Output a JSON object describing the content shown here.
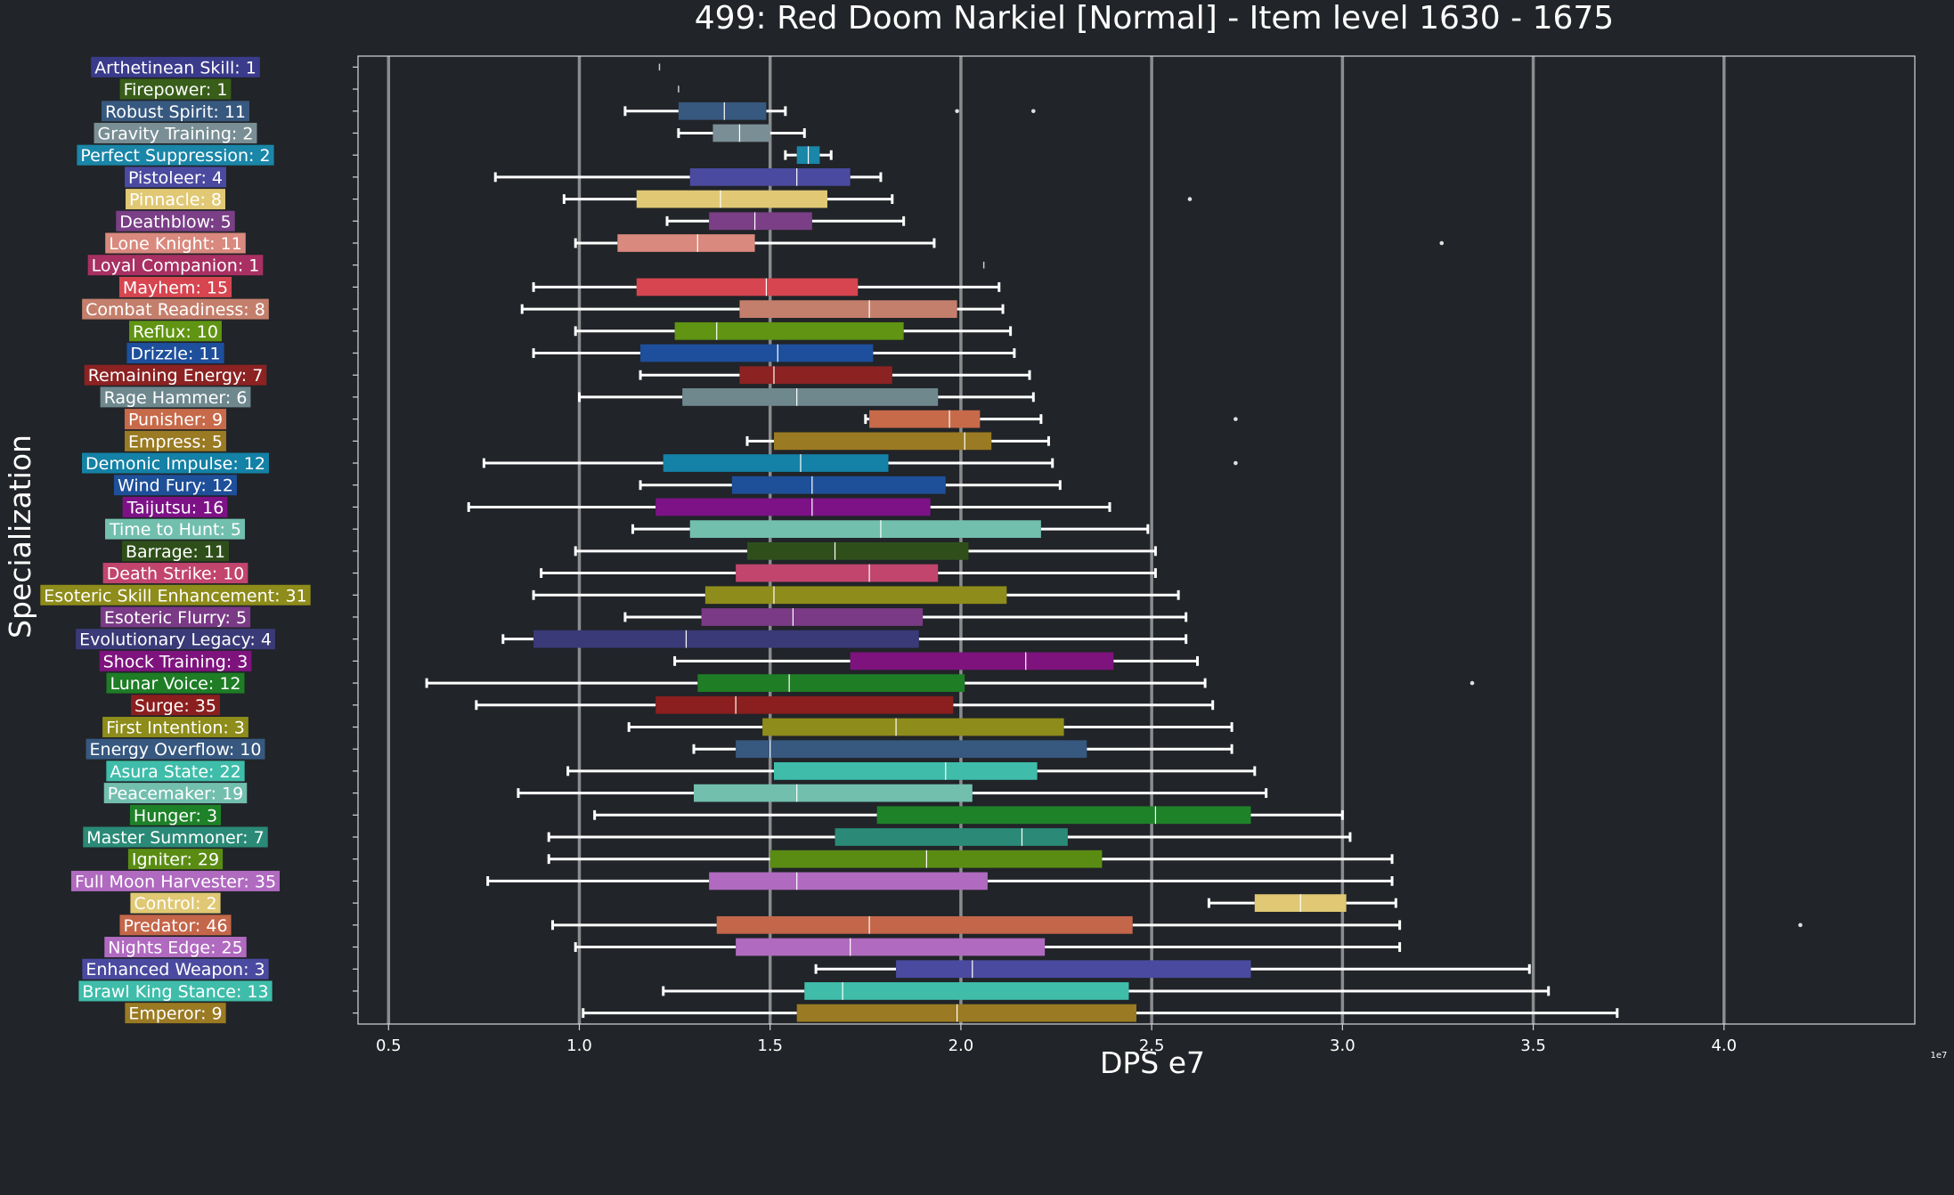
{
  "chart_data": {
    "type": "box",
    "title": "499: Red Doom Narkiel [Normal] - Item level 1630 - 1675",
    "xlabel": "DPS e7",
    "ylabel": "Specialization",
    "x_offset_label": "1e7",
    "xlim": [
      0.42,
      4.5
    ],
    "xticks": [
      0.5,
      1.0,
      1.5,
      2.0,
      2.5,
      3.0,
      3.5,
      4.0
    ],
    "xtick_labels": [
      "0.5",
      "1.0",
      "1.5",
      "2.0",
      "2.5",
      "3.0",
      "3.5",
      "4.0"
    ],
    "grid": "vertical",
    "series": [
      {
        "label": "Arthetinean Skill: 1",
        "color": "#3b3b8c",
        "whislo": 1.21,
        "q1": 1.21,
        "median": 1.21,
        "q3": 1.21,
        "whishi": 1.21,
        "fliers": []
      },
      {
        "label": "Firepower: 1",
        "color": "#385e1a",
        "whislo": 1.26,
        "q1": 1.26,
        "median": 1.26,
        "q3": 1.26,
        "whishi": 1.26,
        "fliers": []
      },
      {
        "label": "Robust Spirit: 11",
        "color": "#37587f",
        "whislo": 1.12,
        "q1": 1.26,
        "median": 1.38,
        "q3": 1.49,
        "whishi": 1.54,
        "fliers": [
          1.99,
          2.19
        ]
      },
      {
        "label": "Gravity Training: 2",
        "color": "#7a8f95",
        "whislo": 1.26,
        "q1": 1.35,
        "median": 1.42,
        "q3": 1.5,
        "whishi": 1.59,
        "fliers": []
      },
      {
        "label": "Perfect Suppression: 2",
        "color": "#1a86a8",
        "whislo": 1.54,
        "q1": 1.57,
        "median": 1.6,
        "q3": 1.63,
        "whishi": 1.66,
        "fliers": []
      },
      {
        "label": "Pistoleer: 4",
        "color": "#4a4aa0",
        "whislo": 0.78,
        "q1": 1.29,
        "median": 1.57,
        "q3": 1.71,
        "whishi": 1.79,
        "fliers": []
      },
      {
        "label": "Pinnacle: 8",
        "color": "#e0c874",
        "whislo": 0.96,
        "q1": 1.15,
        "median": 1.37,
        "q3": 1.65,
        "whishi": 1.82,
        "fliers": [
          2.6
        ]
      },
      {
        "label": "Deathblow: 5",
        "color": "#7a3f86",
        "whislo": 1.23,
        "q1": 1.34,
        "median": 1.46,
        "q3": 1.61,
        "whishi": 1.85,
        "fliers": []
      },
      {
        "label": "Lone Knight: 11",
        "color": "#d9897e",
        "whislo": 0.99,
        "q1": 1.1,
        "median": 1.31,
        "q3": 1.46,
        "whishi": 1.93,
        "fliers": [
          3.26
        ]
      },
      {
        "label": "Loyal Companion: 1",
        "color": "#a83062",
        "whislo": 2.06,
        "q1": 2.06,
        "median": 2.06,
        "q3": 2.06,
        "whishi": 2.06,
        "fliers": []
      },
      {
        "label": "Mayhem: 15",
        "color": "#d64550",
        "whislo": 0.88,
        "q1": 1.15,
        "median": 1.49,
        "q3": 1.73,
        "whishi": 2.1,
        "fliers": []
      },
      {
        "label": "Combat Readiness: 8",
        "color": "#c47f6c",
        "whislo": 0.85,
        "q1": 1.42,
        "median": 1.76,
        "q3": 1.99,
        "whishi": 2.11,
        "fliers": []
      },
      {
        "label": "Reflux: 10",
        "color": "#609412",
        "whislo": 0.99,
        "q1": 1.25,
        "median": 1.36,
        "q3": 1.85,
        "whishi": 2.13,
        "fliers": []
      },
      {
        "label": "Drizzle: 11",
        "color": "#1d4f9c",
        "whislo": 0.88,
        "q1": 1.16,
        "median": 1.52,
        "q3": 1.77,
        "whishi": 2.14,
        "fliers": []
      },
      {
        "label": "Remaining Energy: 7",
        "color": "#8c2222",
        "whislo": 1.16,
        "q1": 1.42,
        "median": 1.51,
        "q3": 1.82,
        "whishi": 2.18,
        "fliers": []
      },
      {
        "label": "Rage Hammer: 6",
        "color": "#6e888e",
        "whislo": 1.0,
        "q1": 1.27,
        "median": 1.57,
        "q3": 1.94,
        "whishi": 2.19,
        "fliers": []
      },
      {
        "label": "Punisher: 9",
        "color": "#c76a4a",
        "whislo": 1.75,
        "q1": 1.76,
        "median": 1.97,
        "q3": 2.05,
        "whishi": 2.21,
        "fliers": [
          2.72
        ]
      },
      {
        "label": "Empress: 5",
        "color": "#9a7a22",
        "whislo": 1.44,
        "q1": 1.51,
        "median": 2.01,
        "q3": 2.08,
        "whishi": 2.23,
        "fliers": []
      },
      {
        "label": "Demonic Impulse: 12",
        "color": "#1481a6",
        "whislo": 0.75,
        "q1": 1.22,
        "median": 1.58,
        "q3": 1.81,
        "whishi": 2.24,
        "fliers": [
          2.72
        ]
      },
      {
        "label": "Wind Fury: 12",
        "color": "#1e4f99",
        "whislo": 1.16,
        "q1": 1.4,
        "median": 1.61,
        "q3": 1.96,
        "whishi": 2.26,
        "fliers": []
      },
      {
        "label": "Taijutsu: 16",
        "color": "#7d1287",
        "whislo": 0.71,
        "q1": 1.2,
        "median": 1.61,
        "q3": 1.92,
        "whishi": 2.39,
        "fliers": []
      },
      {
        "label": "Time to Hunt: 5",
        "color": "#72bfae",
        "whislo": 1.14,
        "q1": 1.29,
        "median": 1.79,
        "q3": 2.21,
        "whishi": 2.49,
        "fliers": []
      },
      {
        "label": "Barrage: 11",
        "color": "#2f4f1a",
        "whislo": 0.99,
        "q1": 1.44,
        "median": 1.67,
        "q3": 2.02,
        "whishi": 2.51,
        "fliers": []
      },
      {
        "label": "Death Strike: 10",
        "color": "#c2456e",
        "whislo": 0.9,
        "q1": 1.41,
        "median": 1.76,
        "q3": 1.94,
        "whishi": 2.51,
        "fliers": []
      },
      {
        "label": "Esoteric Skill Enhancement: 31",
        "color": "#8e8c1a",
        "whislo": 0.88,
        "q1": 1.33,
        "median": 1.51,
        "q3": 2.12,
        "whishi": 2.57,
        "fliers": []
      },
      {
        "label": "Esoteric Flurry: 5",
        "color": "#7a3a86",
        "whislo": 1.12,
        "q1": 1.32,
        "median": 1.56,
        "q3": 1.9,
        "whishi": 2.59,
        "fliers": []
      },
      {
        "label": "Evolutionary Legacy: 4",
        "color": "#3a3a78",
        "whislo": 0.8,
        "q1": 0.88,
        "median": 1.28,
        "q3": 1.89,
        "whishi": 2.59,
        "fliers": []
      },
      {
        "label": "Shock Training: 3",
        "color": "#7e137e",
        "whislo": 1.25,
        "q1": 1.71,
        "median": 2.17,
        "q3": 2.4,
        "whishi": 2.62,
        "fliers": []
      },
      {
        "label": "Lunar Voice: 12",
        "color": "#1e7d25",
        "whislo": 0.6,
        "q1": 1.31,
        "median": 1.55,
        "q3": 2.01,
        "whishi": 2.64,
        "fliers": [
          3.34
        ]
      },
      {
        "label": "Surge: 35",
        "color": "#8b1e1e",
        "whislo": 0.73,
        "q1": 1.2,
        "median": 1.41,
        "q3": 1.98,
        "whishi": 2.66,
        "fliers": []
      },
      {
        "label": "First Intention: 3",
        "color": "#8e8c1a",
        "whislo": 1.13,
        "q1": 1.48,
        "median": 1.83,
        "q3": 2.27,
        "whishi": 2.71,
        "fliers": []
      },
      {
        "label": "Energy Overflow: 10",
        "color": "#37587f",
        "whislo": 1.3,
        "q1": 1.41,
        "median": 1.5,
        "q3": 2.33,
        "whishi": 2.71,
        "fliers": []
      },
      {
        "label": "Asura State: 22",
        "color": "#3fbdaa",
        "whislo": 0.97,
        "q1": 1.51,
        "median": 1.96,
        "q3": 2.2,
        "whishi": 2.77,
        "fliers": []
      },
      {
        "label": "Peacemaker: 19",
        "color": "#72bfae",
        "whislo": 0.84,
        "q1": 1.3,
        "median": 1.57,
        "q3": 2.03,
        "whishi": 2.8,
        "fliers": []
      },
      {
        "label": "Hunger: 3",
        "color": "#1e8228",
        "whislo": 1.04,
        "q1": 1.78,
        "median": 2.51,
        "q3": 2.76,
        "whishi": 3.0,
        "fliers": []
      },
      {
        "label": "Master Summoner: 7",
        "color": "#2a8a77",
        "whislo": 0.92,
        "q1": 1.67,
        "median": 2.16,
        "q3": 2.28,
        "whishi": 3.02,
        "fliers": []
      },
      {
        "label": "Igniter: 29",
        "color": "#5a8c14",
        "whislo": 0.92,
        "q1": 1.5,
        "median": 1.91,
        "q3": 2.37,
        "whishi": 3.13,
        "fliers": []
      },
      {
        "label": "Full Moon Harvester: 35",
        "color": "#b06abf",
        "whislo": 0.76,
        "q1": 1.34,
        "median": 1.57,
        "q3": 2.07,
        "whishi": 3.13,
        "fliers": []
      },
      {
        "label": "Control: 2",
        "color": "#e0c874",
        "whislo": 2.65,
        "q1": 2.77,
        "median": 2.89,
        "q3": 3.01,
        "whishi": 3.14,
        "fliers": []
      },
      {
        "label": "Predator: 46",
        "color": "#c4664a",
        "whislo": 0.93,
        "q1": 1.36,
        "median": 1.76,
        "q3": 2.45,
        "whishi": 3.15,
        "fliers": [
          4.2
        ]
      },
      {
        "label": "Nights Edge: 25",
        "color": "#b06abf",
        "whislo": 0.99,
        "q1": 1.41,
        "median": 1.71,
        "q3": 2.22,
        "whishi": 3.15,
        "fliers": []
      },
      {
        "label": "Enhanced Weapon: 3",
        "color": "#4a4aa0",
        "whislo": 1.62,
        "q1": 1.83,
        "median": 2.03,
        "q3": 2.76,
        "whishi": 3.49,
        "fliers": []
      },
      {
        "label": "Brawl King Stance: 13",
        "color": "#3fbdaa",
        "whislo": 1.22,
        "q1": 1.59,
        "median": 1.69,
        "q3": 2.44,
        "whishi": 3.54,
        "fliers": []
      },
      {
        "label": "Emperor: 9",
        "color": "#9a7a22",
        "whislo": 1.01,
        "q1": 1.57,
        "median": 1.99,
        "q3": 2.46,
        "whishi": 3.72,
        "fliers": []
      }
    ]
  }
}
